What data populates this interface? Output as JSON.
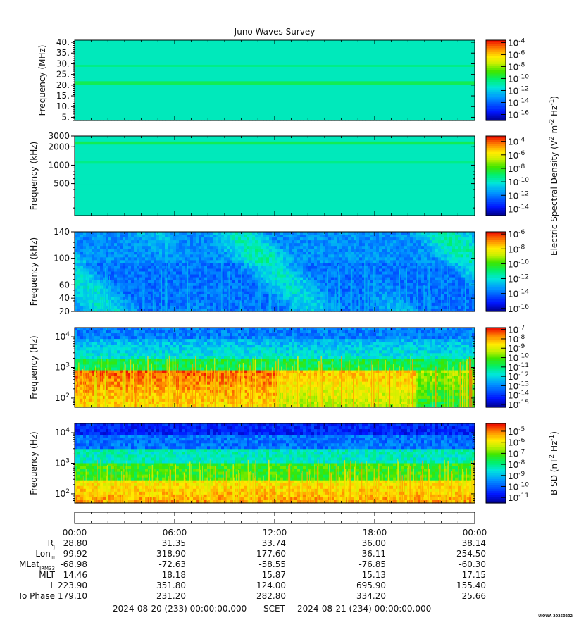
{
  "chart_data": {
    "type": "heatmap",
    "title": "Juno Waves Survey",
    "x_tick_labels": [
      "00:00",
      "06:00",
      "12:00",
      "18:00",
      "00:00"
    ],
    "panels": [
      {
        "ylabel": "Frequency (MHz)",
        "yscale": "linear",
        "ylim": [
          3.5,
          41
        ],
        "yticks": [
          {
            "v": 5,
            "label": "5."
          },
          {
            "v": 10,
            "label": "10."
          },
          {
            "v": 15,
            "label": "15."
          },
          {
            "v": 20,
            "label": "20."
          },
          {
            "v": 25,
            "label": "25."
          },
          {
            "v": 30,
            "label": "30."
          },
          {
            "v": 35,
            "label": "35."
          },
          {
            "v": 40,
            "label": "40."
          }
        ],
        "colorbar": {
          "exponents": [
            -4,
            -6,
            -8,
            -10,
            -12,
            -14,
            -16
          ],
          "range_exp": [
            -17,
            -3.6
          ]
        },
        "pattern": "hf_bands",
        "bands": [
          {
            "v": 21,
            "width": 1.6
          },
          {
            "v": 29,
            "width": 1.0
          }
        ],
        "base_level": 0.45
      },
      {
        "ylabel": "Frequency (kHz)",
        "yscale": "log",
        "ylim": [
          150,
          3000
        ],
        "yticks": [
          {
            "v": 3000,
            "label": "3000"
          },
          {
            "v": 2000,
            "label": "2000"
          },
          {
            "v": 1000,
            "label": "1000"
          },
          {
            "v": 500,
            "label": "500"
          }
        ],
        "colorbar": {
          "exponents": [
            -4,
            -6,
            -8,
            -10,
            -12,
            -14
          ],
          "range_exp": [
            -15,
            -3.2
          ]
        },
        "pattern": "hf_bands",
        "bands": [
          {
            "v": 2300,
            "width": 0.05
          },
          {
            "v": 1120,
            "width": 0.05
          }
        ],
        "base_level": 0.45
      },
      {
        "ylabel": "Frequency (kHz)",
        "yscale": "linear",
        "ylim": [
          20,
          140
        ],
        "yticks": [
          {
            "v": 140,
            "label": "140"
          },
          {
            "v": 100,
            "label": "100"
          },
          {
            "v": 60,
            "label": "60"
          },
          {
            "v": 40,
            "label": "40"
          },
          {
            "v": 20,
            "label": "20"
          }
        ],
        "colorbar": {
          "exponents": [
            -6,
            -8,
            -10,
            -12,
            -14,
            -16
          ],
          "range_exp": [
            -16.4,
            -5.7
          ]
        },
        "pattern": "lowkhz",
        "base_level": 0.25
      },
      {
        "ylabel": "Frequency (Hz)",
        "yscale": "log",
        "ylim": [
          50,
          20000
        ],
        "yticks": [
          {
            "v": 10000,
            "label": "10^4"
          },
          {
            "v": 1000,
            "label": "10^3"
          },
          {
            "v": 100,
            "label": "10^2"
          }
        ],
        "colorbar": {
          "exponents": [
            -7,
            -8,
            -9,
            -10,
            -11,
            -12,
            -13,
            -14,
            -15
          ],
          "range_exp": [
            -15.3,
            -6.8
          ]
        },
        "pattern": "e_lowfreq",
        "base_level": 0.3
      },
      {
        "ylabel": "Frequency (Hz)",
        "yscale": "log",
        "ylim": [
          50,
          20000
        ],
        "yticks": [
          {
            "v": 10000,
            "label": "10^4"
          },
          {
            "v": 1000,
            "label": "10^3"
          },
          {
            "v": 100,
            "label": "10^2"
          }
        ],
        "colorbar": {
          "exponents": [
            -5,
            -6,
            -7,
            -8,
            -9,
            -10,
            -11
          ],
          "range_exp": [
            -11.5,
            -4.3
          ]
        },
        "pattern": "b_lowfreq",
        "base_level": 0.3
      }
    ],
    "colorbar_labels": [
      {
        "text": "Electric Spectral Density (V^2 m^-2 Hz^-1)",
        "panels": [
          0,
          2
        ]
      },
      {
        "text": "B SD (nT^2 Hz^-1)",
        "panels": [
          4,
          4
        ]
      }
    ],
    "ephemeris": {
      "rows": [
        {
          "label": "R_J",
          "values": [
            "28.80",
            "31.35",
            "33.74",
            "36.00",
            "38.14"
          ]
        },
        {
          "label": "Lon_III",
          "values": [
            "99.92",
            "318.90",
            "177.60",
            "36.11",
            "254.50"
          ]
        },
        {
          "label": "MLat_JRM33",
          "values": [
            "-68.98",
            "-72.63",
            "-58.55",
            "-76.85",
            "-60.30"
          ]
        },
        {
          "label": "MLT",
          "values": [
            "14.46",
            "18.18",
            "15.87",
            "15.13",
            "17.15"
          ]
        },
        {
          "label": "L",
          "values": [
            "223.90",
            "351.80",
            "124.00",
            "695.90",
            "155.40"
          ]
        },
        {
          "label": "Io Phase",
          "values": [
            "179.10",
            "231.20",
            "282.80",
            "334.20",
            "25.66"
          ]
        }
      ]
    },
    "scet_start": "2024-08-20 (233) 00:00:00.000",
    "scet_label": "SCET",
    "scet_end": "2024-08-21 (234) 00:00:00.000",
    "footer_tag": "UIOWA 20250202"
  }
}
